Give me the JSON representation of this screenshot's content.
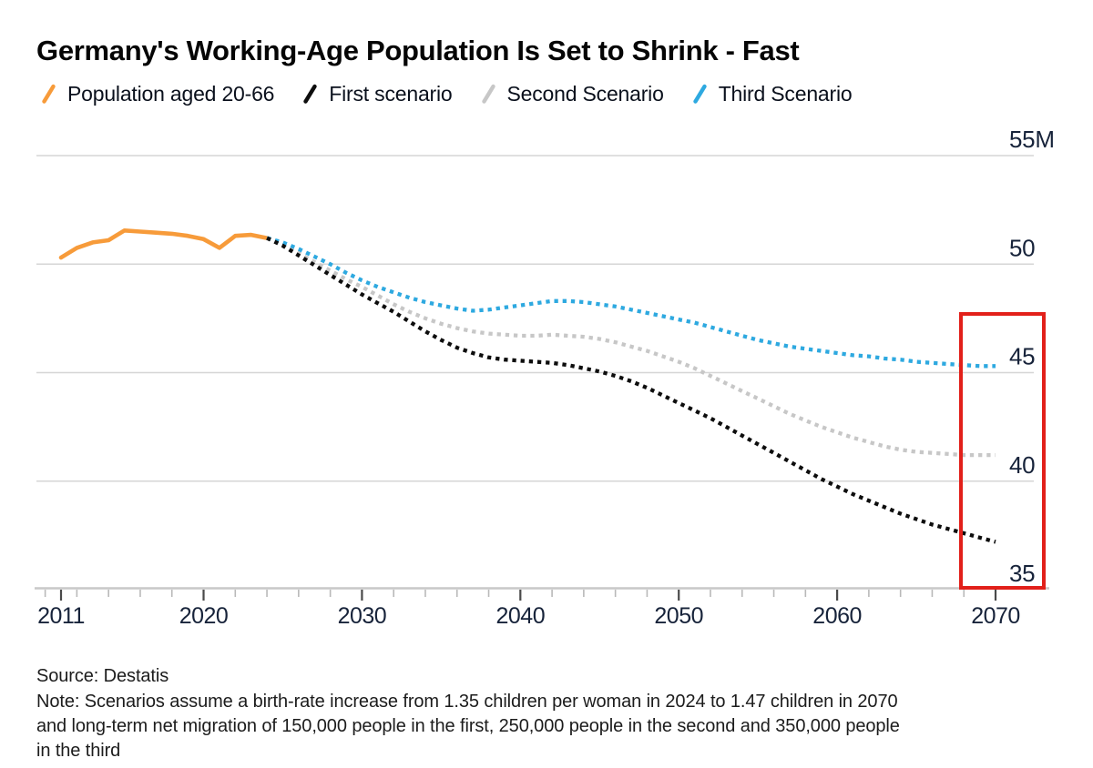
{
  "header": {
    "title": "Germany's Working-Age Population Is Set to Shrink - Fast"
  },
  "legend": {
    "marker_style": "slash-icon",
    "items": [
      {
        "label": "Population aged 20-66",
        "color": "#f79b3a"
      },
      {
        "label": "First scenario",
        "color": "#0d0d0d"
      },
      {
        "label": "Second Scenario",
        "color": "#c7c7c7"
      },
      {
        "label": "Third Scenario",
        "color": "#2ea9e0"
      }
    ]
  },
  "footer": {
    "source": "Source: Destatis",
    "note_lines": [
      "Note: Scenarios assume a birth-rate increase from 1.35 children per woman in 2024 to 1.47 children in 2070",
      "and long-term net migration of 150,000 people in the first, 250,000 people in the second and 350,000 people",
      "in the third"
    ]
  },
  "chart_data": {
    "type": "line",
    "title": "Germany's Working-Age Population Is Set to Shrink - Fast",
    "unit": "millions of people",
    "ylabel": "",
    "xlabel": "",
    "x_range": [
      2011,
      2070
    ],
    "y_range": [
      35,
      55
    ],
    "grid": "horizontal",
    "legend_position": "top",
    "y_ticks": [
      {
        "value": 55,
        "label": "55M"
      },
      {
        "value": 50,
        "label": "50"
      },
      {
        "value": 45,
        "label": "45"
      },
      {
        "value": 40,
        "label": "40"
      },
      {
        "value": 35,
        "label": "35"
      }
    ],
    "x_major_ticks": [
      2011,
      2020,
      2030,
      2040,
      2050,
      2060,
      2070
    ],
    "x_minor_ticks": [
      2010,
      2012,
      2014,
      2016,
      2018,
      2022,
      2024,
      2026,
      2028,
      2032,
      2034,
      2036,
      2038,
      2042,
      2044,
      2046,
      2048,
      2052,
      2054,
      2056,
      2058,
      2062,
      2064,
      2066,
      2068
    ],
    "series": [
      {
        "name": "Population aged 20-66",
        "color": "#f79b3a",
        "line_style": "solid",
        "start_year": 2011,
        "values": [
          50.3,
          50.75,
          51.0,
          51.1,
          51.55,
          51.5,
          51.45,
          51.4,
          51.3,
          51.15,
          50.75,
          51.3,
          51.35,
          51.2
        ]
      },
      {
        "name": "Second Scenario",
        "color": "#c7c7c7",
        "line_style": "dotted",
        "start_year": 2024,
        "values": [
          51.2,
          50.9,
          50.5,
          50.1,
          49.7,
          49.3,
          48.95,
          48.55,
          48.15,
          47.8,
          47.5,
          47.25,
          47.05,
          46.9,
          46.8,
          46.75,
          46.7,
          46.7,
          46.75,
          46.7,
          46.65,
          46.55,
          46.4,
          46.2,
          46.0,
          45.75,
          45.5,
          45.2,
          44.85,
          44.5,
          44.15,
          43.8,
          43.45,
          43.1,
          42.8,
          42.5,
          42.25,
          42.0,
          41.8,
          41.6,
          41.45,
          41.35,
          41.3,
          41.25,
          41.2,
          41.2,
          41.2
        ]
      },
      {
        "name": "Third Scenario",
        "color": "#2ea9e0",
        "line_style": "dotted",
        "start_year": 2024,
        "values": [
          51.2,
          51.0,
          50.7,
          50.35,
          50.0,
          49.6,
          49.25,
          48.95,
          48.7,
          48.45,
          48.25,
          48.1,
          47.95,
          47.85,
          47.9,
          48.0,
          48.1,
          48.2,
          48.3,
          48.3,
          48.25,
          48.15,
          48.05,
          47.9,
          47.75,
          47.6,
          47.45,
          47.3,
          47.1,
          46.9,
          46.7,
          46.5,
          46.35,
          46.2,
          46.1,
          46.0,
          45.9,
          45.8,
          45.75,
          45.65,
          45.6,
          45.5,
          45.45,
          45.4,
          45.35,
          45.3,
          45.3
        ]
      },
      {
        "name": "First scenario",
        "color": "#0d0d0d",
        "line_style": "dotted",
        "start_year": 2024,
        "values": [
          51.2,
          50.85,
          50.4,
          49.95,
          49.5,
          49.05,
          48.6,
          48.2,
          47.8,
          47.35,
          46.9,
          46.5,
          46.15,
          45.9,
          45.7,
          45.6,
          45.55,
          45.5,
          45.45,
          45.35,
          45.2,
          45.05,
          44.85,
          44.6,
          44.3,
          43.95,
          43.6,
          43.25,
          42.9,
          42.5,
          42.1,
          41.7,
          41.3,
          40.9,
          40.5,
          40.1,
          39.75,
          39.4,
          39.1,
          38.8,
          38.5,
          38.25,
          38.0,
          37.8,
          37.6,
          37.4,
          37.2
        ]
      }
    ],
    "annotations": [
      {
        "type": "highlight-box",
        "color": "#e2201a",
        "x_years": [
          2067.2,
          2073.2
        ],
        "y_values": [
          35.0,
          47.8
        ],
        "meaning": "highlights 2070 endpoint values of the three scenarios"
      }
    ],
    "colors": {
      "gridline": "#d6d6d6",
      "axis_line": "#c8c8c8",
      "major_tick": "#4a4a4a",
      "minor_tick": "#b9b9b9",
      "axis_label": "#17233a"
    }
  }
}
